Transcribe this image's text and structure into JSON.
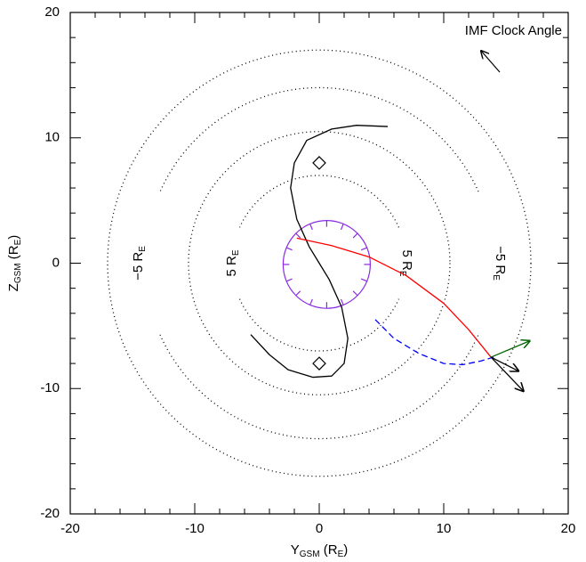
{
  "chart_data": {
    "type": "line",
    "title": "IMF Clock Angle",
    "x_label": [
      "Y",
      "GSM",
      " (R",
      "E",
      ")"
    ],
    "y_label": [
      "Z",
      "GSM",
      " (R",
      "E",
      ")"
    ],
    "xlim": [
      -20,
      20
    ],
    "ylim": [
      -20,
      20
    ],
    "xticks": [
      -20,
      -10,
      0,
      10,
      20
    ],
    "yticks": [
      -20,
      -10,
      0,
      10,
      20
    ],
    "contour_radii": [
      7,
      10.5,
      14,
      17
    ],
    "contour_labels": [
      [
        "−5 R",
        "E"
      ],
      [
        "5 R",
        "E"
      ],
      [
        "5 R",
        "E"
      ],
      [
        "−5 R",
        "E"
      ]
    ],
    "series": [
      {
        "color": "#000000",
        "dash": false,
        "x": [
          -5.5,
          -4,
          -2.5,
          -0.5,
          1,
          2,
          2.3,
          1.8,
          0.8,
          0,
          -0.8,
          -1.8,
          -2.3,
          -2,
          -1,
          1,
          3,
          5.5
        ],
        "y": [
          -5.7,
          -7.3,
          -8.5,
          -9.1,
          -9,
          -8,
          -6,
          -3.5,
          -1.3,
          0,
          1.3,
          3.5,
          6,
          8,
          9.8,
          10.7,
          11,
          10.9
        ]
      },
      {
        "color": "#ff0000",
        "dash": false,
        "x": [
          -1.8,
          1,
          4,
          7,
          10,
          12,
          13.8
        ],
        "y": [
          2.0,
          1.4,
          0.5,
          -1.0,
          -3.2,
          -5.3,
          -7.5
        ]
      },
      {
        "color": "#0000ff",
        "dash": true,
        "x": [
          4.5,
          6,
          8,
          10,
          11.5,
          13,
          14
        ],
        "y": [
          -4.5,
          -6,
          -7.2,
          -8,
          -8.1,
          -7.8,
          -7.5
        ]
      }
    ],
    "markers": {
      "x": [
        0,
        0
      ],
      "y": [
        8,
        -8
      ]
    },
    "ring": {
      "x": 0.6,
      "y": -0.1,
      "r": 3.5,
      "color": "#8a2be2"
    },
    "vectors": [
      {
        "color": "#006400",
        "x": [
          13.8,
          16.9
        ],
        "y": [
          -7.5,
          -6.2
        ]
      },
      {
        "color": "#000000",
        "x": [
          13.8,
          16
        ],
        "y": [
          -7.5,
          -8.6
        ]
      },
      {
        "color": "#000000",
        "x": [
          13.8,
          16.4
        ],
        "y": [
          -7.5,
          -10.2
        ]
      }
    ]
  }
}
